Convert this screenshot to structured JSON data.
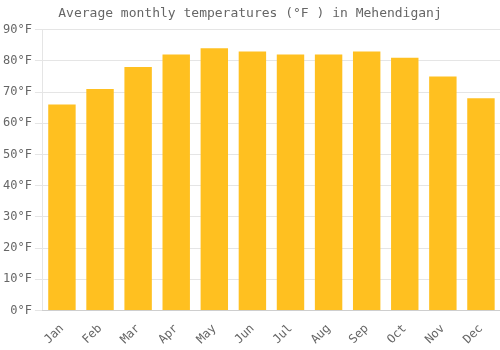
{
  "chart_data": {
    "type": "bar",
    "title": "Average monthly temperatures (°F ) in Mehendiganj",
    "categories": [
      "Jan",
      "Feb",
      "Mar",
      "Apr",
      "May",
      "Jun",
      "Jul",
      "Aug",
      "Sep",
      "Oct",
      "Nov",
      "Dec"
    ],
    "values": [
      66,
      71,
      78,
      82,
      84,
      83,
      82,
      82,
      83,
      81,
      75,
      68
    ],
    "color": "#FFC020",
    "ylim": [
      0,
      90
    ],
    "yticks": [
      {
        "value": 0,
        "label": "0°F"
      },
      {
        "value": 10,
        "label": "10°F"
      },
      {
        "value": 20,
        "label": "20°F"
      },
      {
        "value": 30,
        "label": "30°F"
      },
      {
        "value": 40,
        "label": "40°F"
      },
      {
        "value": 50,
        "label": "50°F"
      },
      {
        "value": 60,
        "label": "60°F"
      },
      {
        "value": 70,
        "label": "70°F"
      },
      {
        "value": 80,
        "label": "80°F"
      },
      {
        "value": 90,
        "label": "90°F"
      }
    ],
    "grid": true
  }
}
